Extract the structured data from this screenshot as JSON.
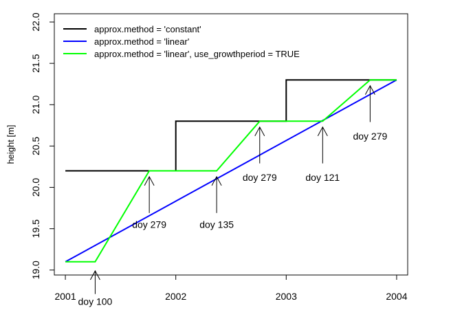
{
  "chart_data": {
    "type": "line",
    "title": "",
    "xlabel": "",
    "ylabel": "height [m]",
    "xlim": [
      2000.9,
      2004.1
    ],
    "ylim": [
      18.94,
      22.1
    ],
    "x_ticks": [
      2001,
      2002,
      2003,
      2004
    ],
    "x_tick_labels": [
      "2001",
      "2002",
      "2003",
      "2004"
    ],
    "y_ticks": [
      19.0,
      19.5,
      20.0,
      20.5,
      21.0,
      21.5,
      22.0
    ],
    "y_tick_labels": [
      "19.0",
      "19.5",
      "20.0",
      "20.5",
      "21.0",
      "21.5",
      "22.0"
    ],
    "grid": false,
    "legend_position": "top-left",
    "series": [
      {
        "name": "approx.method = 'constant'",
        "color": "#000000",
        "points": [
          {
            "x": 2001.0,
            "y": 20.2
          },
          {
            "x": 2002.0,
            "y": 20.2
          },
          {
            "x": 2002.0,
            "y": 20.8
          },
          {
            "x": 2003.0,
            "y": 20.8
          },
          {
            "x": 2003.0,
            "y": 21.3
          },
          {
            "x": 2004.0,
            "y": 21.3
          }
        ]
      },
      {
        "name": "approx.method = 'linear'",
        "color": "#0000ff",
        "points": [
          {
            "x": 2001.0,
            "y": 19.1
          },
          {
            "x": 2004.0,
            "y": 21.3
          }
        ]
      },
      {
        "name": "approx.method = 'linear', use_growthperiod = TRUE",
        "color": "#00ff00",
        "points": [
          {
            "x": 2001.0,
            "y": 19.1
          },
          {
            "x": 2001.27,
            "y": 19.1
          },
          {
            "x": 2001.76,
            "y": 20.2
          },
          {
            "x": 2002.37,
            "y": 20.2
          },
          {
            "x": 2002.76,
            "y": 20.8
          },
          {
            "x": 2003.33,
            "y": 20.8
          },
          {
            "x": 2003.76,
            "y": 21.3
          },
          {
            "x": 2004.0,
            "y": 21.3
          }
        ]
      }
    ],
    "annotations": [
      {
        "label": "doy 100",
        "x": 2001.27,
        "arrow_head_y": 18.99,
        "arrow_tail_y": 18.71,
        "text_y": 18.62
      },
      {
        "label": "doy 279",
        "x": 2001.76,
        "arrow_head_y": 20.13,
        "arrow_tail_y": 19.69,
        "text_y": 19.55
      },
      {
        "label": "doy 135",
        "x": 2002.37,
        "arrow_head_y": 20.13,
        "arrow_tail_y": 19.69,
        "text_y": 19.55
      },
      {
        "label": "doy 279",
        "x": 2002.76,
        "arrow_head_y": 20.73,
        "arrow_tail_y": 20.29,
        "text_y": 20.12
      },
      {
        "label": "doy 121",
        "x": 2003.33,
        "arrow_head_y": 20.73,
        "arrow_tail_y": 20.29,
        "text_y": 20.12
      },
      {
        "label": "doy 279",
        "x": 2003.76,
        "arrow_head_y": 21.23,
        "arrow_tail_y": 20.79,
        "text_y": 20.62
      }
    ]
  }
}
